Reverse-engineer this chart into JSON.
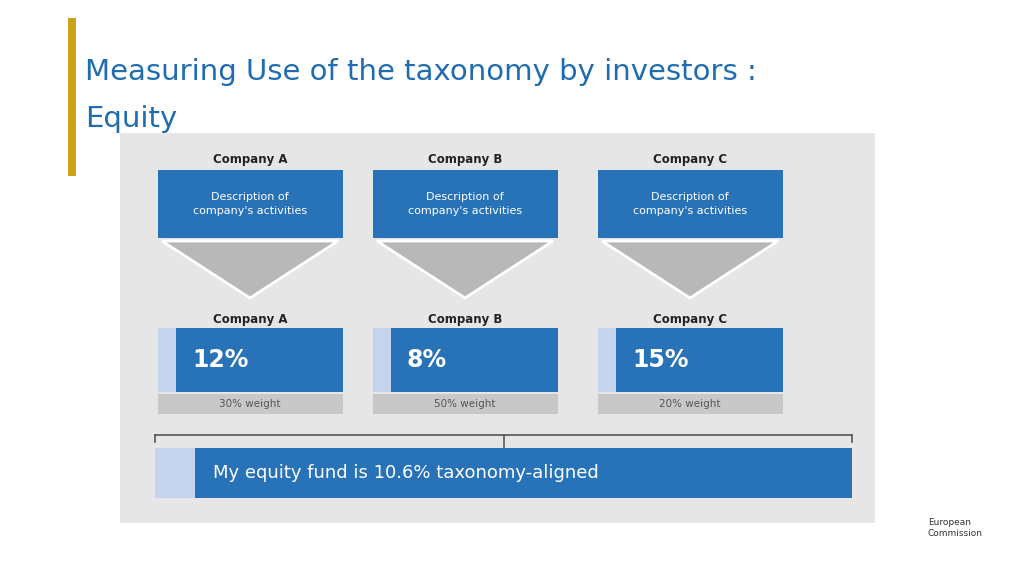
{
  "title_line1": "Measuring Use of the taxonomy by investors :",
  "title_line2": "Equity",
  "title_color": "#1F6CB0",
  "title_bar_color": "#C8A217",
  "background_color": "#FFFFFF",
  "panel_bg_color": "#E6E6E6",
  "blue_box_color": "#2872B8",
  "white_text": "#FFFFFF",
  "dark_text": "#222222",
  "gray_text": "#555555",
  "light_blue_box": "#C5D3EE",
  "companies_top": [
    "Company A",
    "Company B",
    "Company C"
  ],
  "companies_bottom": [
    "Company A",
    "Company B",
    "Company C"
  ],
  "desc_text": "Description of\ncompany's activities",
  "percentages": [
    "12%",
    "8%",
    "15%"
  ],
  "weights": [
    "30% weight",
    "50% weight",
    "20% weight"
  ],
  "bottom_text": "My equity fund is 10.6% taxonomy-aligned",
  "tri_color": "#B8B8B8",
  "weight_bg": "#C8C8C8"
}
